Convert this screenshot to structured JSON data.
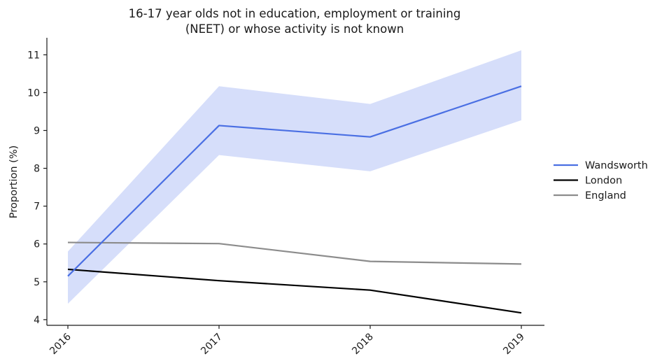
{
  "chart_data": {
    "type": "line",
    "title_lines": [
      "16-17 year olds not in education, employment or training",
      "(NEET) or whose activity is not known"
    ],
    "xlabel": "",
    "ylabel": "Proportion (%)",
    "categories": [
      "2016",
      "2017",
      "2018",
      "2019"
    ],
    "ylim": [
      3.85,
      11.45
    ],
    "yticks": [
      4,
      5,
      6,
      7,
      8,
      9,
      10,
      11
    ],
    "grid": false,
    "legend_position": "right",
    "series": [
      {
        "name": "Wandsworth",
        "color": "#4a6fe3",
        "values": [
          5.15,
          9.13,
          8.83,
          10.17
        ],
        "band_upper": [
          5.8,
          10.17,
          9.7,
          11.12
        ],
        "band_lower": [
          4.42,
          8.35,
          7.92,
          9.27
        ],
        "band_color": "#d6defa"
      },
      {
        "name": "London",
        "color": "#000000",
        "values": [
          5.33,
          5.03,
          4.78,
          4.18
        ]
      },
      {
        "name": "England",
        "color": "#8c8c8c",
        "values": [
          6.04,
          6.01,
          5.54,
          5.47
        ]
      }
    ]
  }
}
